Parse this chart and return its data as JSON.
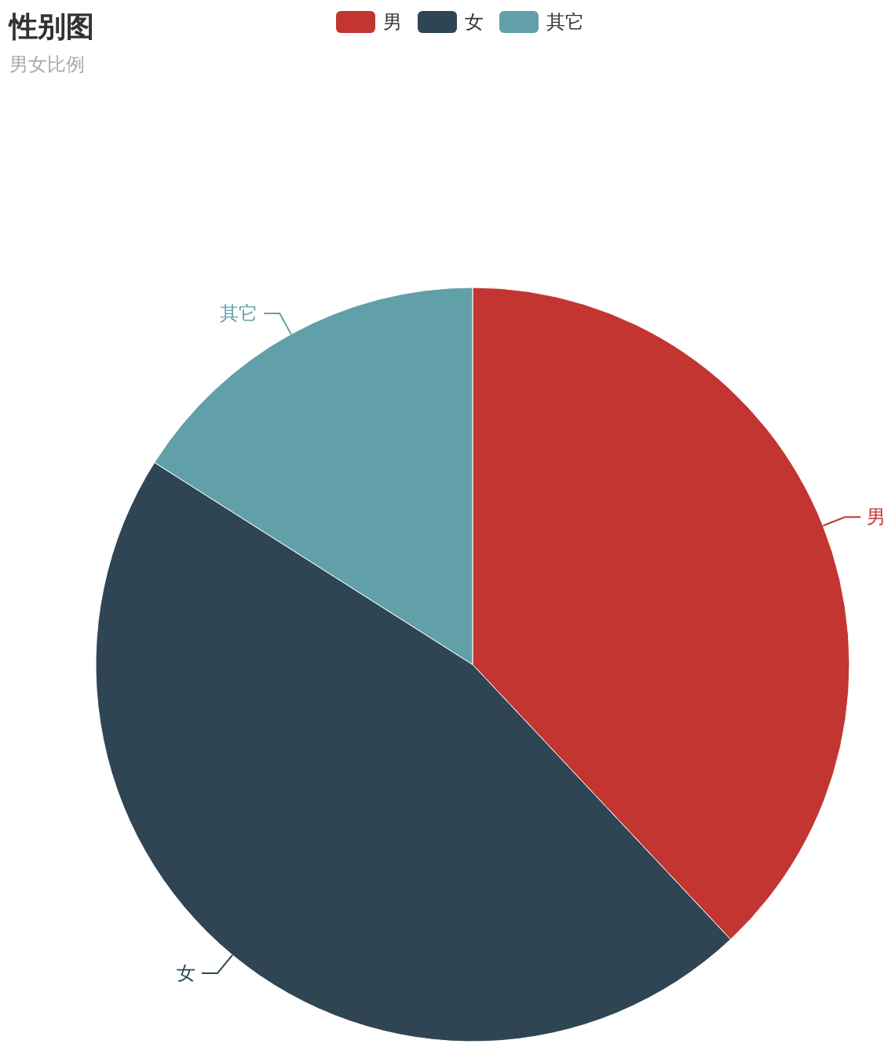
{
  "chart_data": {
    "type": "pie",
    "title": "性别图",
    "subtitle": "男女比例",
    "categories": [
      "男",
      "女",
      "其它"
    ],
    "values": [
      38,
      46,
      16
    ],
    "colors": [
      "#c23531",
      "#2f4554",
      "#61a0a8"
    ],
    "legend": "top"
  }
}
